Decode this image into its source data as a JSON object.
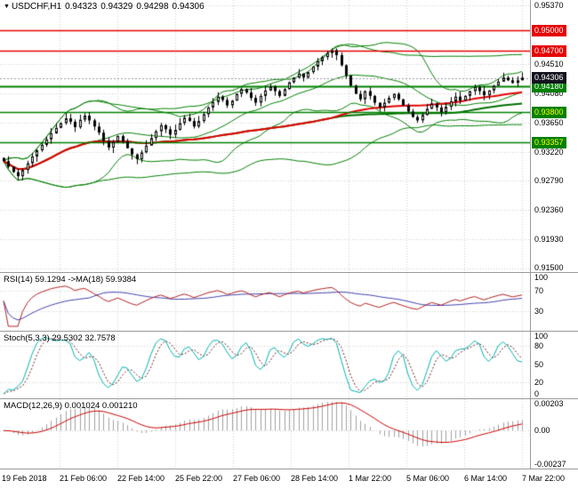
{
  "header": {
    "symbol": "USDCHF,H1",
    "open": "0.94323",
    "high": "0.94329",
    "low": "0.94298",
    "close": "0.94306"
  },
  "colors": {
    "grid": "#cfcfcf",
    "candle_outline": "#000000",
    "bull_fill": "#ffffff",
    "bear_fill": "#000000",
    "bands": "#008000",
    "ma_red": "#e60000",
    "ma_green": "#007000",
    "level_red": "#e60000",
    "level_green": "#008000",
    "current_bg": "#14141e",
    "current_fg": "#ffffff",
    "rsi_line": "#b22222",
    "rsi_ma": "#4040b0",
    "stoch_k": "#00b2b2",
    "stoch_d": "#702020",
    "macd_hist": "#a0a0a0",
    "macd_signal": "#cc0000",
    "axis_text": "#000000"
  },
  "chart_data": {
    "type": "candlestick",
    "symbol": "USDCHF",
    "timeframe": "H1",
    "quote": {
      "open": 0.94323,
      "high": 0.94329,
      "low": 0.94298,
      "close": 0.94306
    },
    "x_labels": [
      "19 Feb 2018",
      "21 Feb 06:00",
      "22 Feb 14:00",
      "25 Feb 22:00",
      "27 Feb 06:00",
      "28 Feb 14:00",
      "1 Mar 22:00",
      "5 Mar 06:00",
      "6 Mar 14:00",
      "7 Mar 22:00"
    ],
    "main": {
      "y_range": [
        0.9145,
        0.9545
      ],
      "y_ticks": [
        "0.95370",
        "0.94510",
        "0.94080",
        "0.93650",
        "0.93220",
        "0.92790",
        "0.92360",
        "0.91930",
        "0.91500"
      ],
      "levels": [
        {
          "value": 0.95,
          "text": "0.95000",
          "color": "#e60000",
          "text_color": "#ffffff",
          "width": 1.5
        },
        {
          "value": 0.947,
          "text": "0.94700",
          "color": "#e60000",
          "text_color": "#ffffff",
          "width": 1.5
        },
        {
          "value": 0.9418,
          "text": "0.94180",
          "color": "#008000",
          "text_color": "#ffffff",
          "width": 2
        },
        {
          "value": 0.938,
          "text": "0.93800",
          "color": "#008000",
          "text_color": "#ffff00",
          "width": 1.5
        },
        {
          "value": 0.93357,
          "text": "0.93357",
          "color": "#008000",
          "text_color": "#ffff00",
          "width": 1.5
        }
      ],
      "current_price": {
        "value": 0.94306,
        "text": "0.94306"
      },
      "closes": [
        0.9308,
        0.93,
        0.9292,
        0.9286,
        0.9295,
        0.9305,
        0.9315,
        0.9324,
        0.9332,
        0.934,
        0.9349,
        0.9357,
        0.9364,
        0.9371,
        0.9366,
        0.9358,
        0.9369,
        0.9375,
        0.9368,
        0.9359,
        0.935,
        0.9338,
        0.9328,
        0.9336,
        0.9345,
        0.9337,
        0.9327,
        0.9318,
        0.9311,
        0.9321,
        0.9331,
        0.9342,
        0.9352,
        0.9361,
        0.9355,
        0.9347,
        0.9354,
        0.9364,
        0.9372,
        0.9367,
        0.9359,
        0.9367,
        0.9377,
        0.9387,
        0.9395,
        0.9403,
        0.9398,
        0.939,
        0.9397,
        0.9407,
        0.9414,
        0.9409,
        0.9401,
        0.9394,
        0.9404,
        0.9412,
        0.9418,
        0.9411,
        0.9404,
        0.9414,
        0.9424,
        0.9431,
        0.9437,
        0.9431,
        0.9439,
        0.9447,
        0.9455,
        0.9461,
        0.9467,
        0.9471,
        0.9464,
        0.9449,
        0.9434,
        0.9419,
        0.9407,
        0.9399,
        0.9411,
        0.9404,
        0.9394,
        0.9387,
        0.9394,
        0.9401,
        0.9407,
        0.9399,
        0.939,
        0.9381,
        0.9373,
        0.9368,
        0.9376,
        0.9385,
        0.9393,
        0.9387,
        0.938,
        0.9388,
        0.9396,
        0.9403,
        0.9397,
        0.9404,
        0.9411,
        0.9417,
        0.9411,
        0.9405,
        0.9412,
        0.9419,
        0.9425,
        0.9431,
        0.9427,
        0.9423,
        0.9427,
        0.9431
      ]
    },
    "indicators": {
      "rsi": {
        "label": "RSI(14) 59.1294 ->MA(18) 59.9384",
        "period": 14,
        "ma_period": 18,
        "range": [
          0,
          100
        ],
        "levels": [
          70,
          30
        ],
        "ticks": [
          {
            "v": 100,
            "t": "100"
          },
          {
            "v": 70,
            "t": "70"
          },
          {
            "v": 30,
            "t": "30"
          }
        ]
      },
      "stoch": {
        "label": "Stoch(5,3,3) 29.5302 32.7578",
        "range": [
          0,
          100
        ],
        "levels": [
          80,
          20
        ],
        "ticks": [
          {
            "v": 100,
            "t": "100"
          },
          {
            "v": 80,
            "t": "80"
          },
          {
            "v": 50,
            "t": "50"
          },
          {
            "v": 20,
            "t": "20"
          },
          {
            "v": 0,
            "t": "0"
          }
        ]
      },
      "macd": {
        "label": "MACD(12,26,9) 0.001024 0.001210",
        "range": [
          -0.00237,
          0.00203
        ],
        "ticks": [
          {
            "v": 0.00203,
            "t": "0.00203"
          },
          {
            "v": 0,
            "t": "0.00"
          },
          {
            "v": -0.00237,
            "t": "-0.00237"
          }
        ]
      }
    }
  }
}
